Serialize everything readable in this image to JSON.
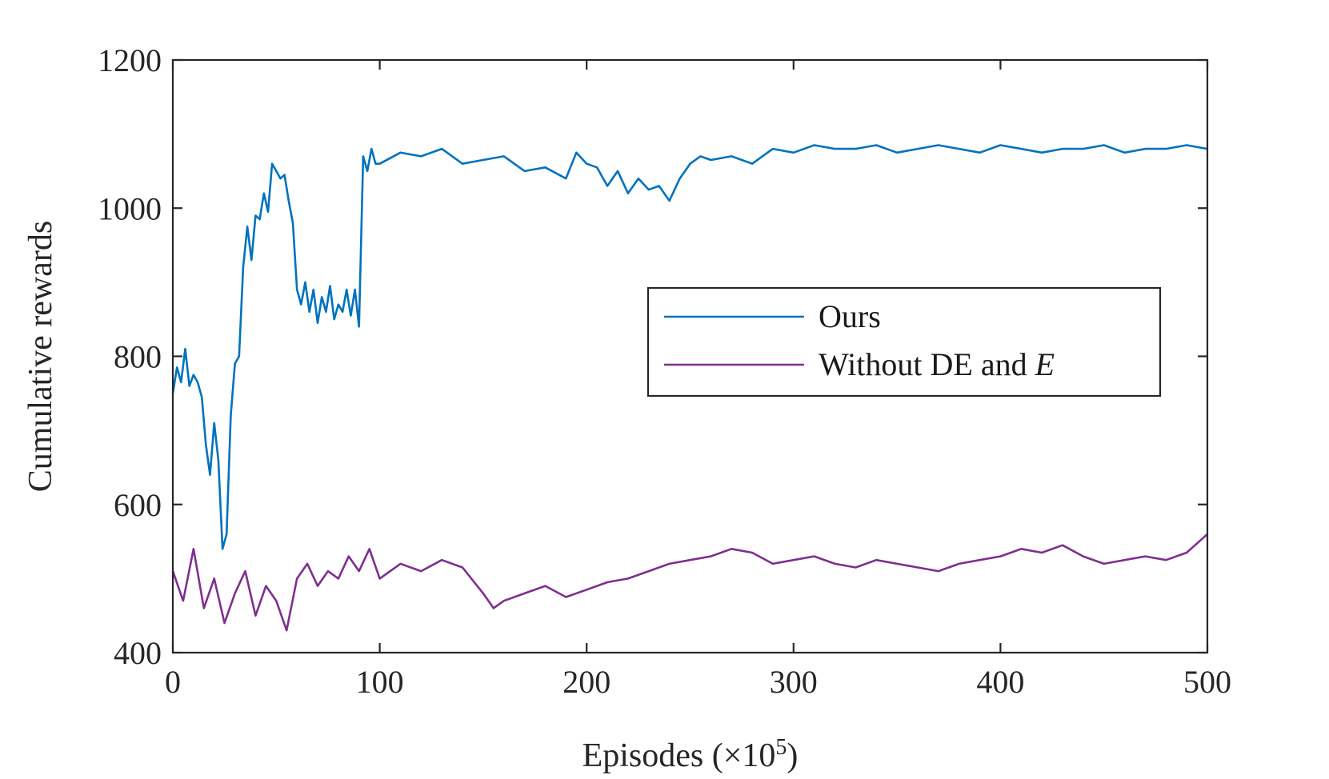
{
  "chart_data": {
    "type": "line",
    "title": "",
    "xlabel": "Episodes (×10",
    "xlabel_exponent": "5",
    "xlabel_close": ")",
    "ylabel": "Cumulative rewards",
    "xlim": [
      0,
      500
    ],
    "ylim": [
      400,
      1200
    ],
    "xticks": [
      0,
      100,
      200,
      300,
      400,
      500
    ],
    "yticks": [
      400,
      600,
      800,
      1000,
      1200
    ],
    "xtick_labels": [
      "0",
      "100",
      "200",
      "300",
      "400",
      "500"
    ],
    "ytick_labels": [
      "400",
      "600",
      "800",
      "1000",
      "1200"
    ],
    "grid": false,
    "legend_position": "center-right",
    "series": [
      {
        "name": "Ours",
        "color": "#0072BD",
        "x": [
          0,
          2,
          4,
          6,
          8,
          10,
          12,
          14,
          16,
          18,
          20,
          22,
          24,
          26,
          28,
          30,
          32,
          34,
          36,
          38,
          40,
          42,
          44,
          46,
          48,
          50,
          52,
          54,
          56,
          58,
          60,
          62,
          64,
          66,
          68,
          70,
          72,
          74,
          76,
          78,
          80,
          82,
          84,
          86,
          88,
          90,
          92,
          94,
          96,
          98,
          100,
          110,
          120,
          130,
          140,
          150,
          160,
          170,
          180,
          190,
          195,
          200,
          205,
          210,
          215,
          220,
          225,
          230,
          235,
          240,
          245,
          250,
          255,
          260,
          270,
          280,
          290,
          300,
          310,
          320,
          330,
          340,
          350,
          360,
          370,
          380,
          390,
          400,
          410,
          420,
          430,
          440,
          450,
          460,
          470,
          480,
          490,
          500
        ],
        "values": [
          750,
          785,
          765,
          810,
          760,
          775,
          765,
          745,
          680,
          640,
          710,
          660,
          540,
          560,
          720,
          790,
          800,
          920,
          975,
          930,
          990,
          985,
          1020,
          995,
          1060,
          1050,
          1040,
          1045,
          1010,
          980,
          890,
          870,
          900,
          860,
          890,
          845,
          880,
          860,
          895,
          850,
          870,
          860,
          890,
          855,
          890,
          840,
          1070,
          1050,
          1080,
          1060,
          1060,
          1075,
          1070,
          1080,
          1060,
          1065,
          1070,
          1050,
          1055,
          1040,
          1075,
          1060,
          1055,
          1030,
          1050,
          1020,
          1040,
          1025,
          1030,
          1010,
          1040,
          1060,
          1070,
          1065,
          1070,
          1060,
          1080,
          1075,
          1085,
          1080,
          1080,
          1085,
          1075,
          1080,
          1085,
          1080,
          1075,
          1085,
          1080,
          1075,
          1080,
          1080,
          1085,
          1075,
          1080,
          1080,
          1085,
          1080
        ]
      },
      {
        "name": "Without DE and E",
        "color": "#7E2F8E",
        "x": [
          0,
          5,
          10,
          15,
          20,
          25,
          30,
          35,
          40,
          45,
          50,
          55,
          60,
          65,
          70,
          75,
          80,
          85,
          90,
          95,
          100,
          110,
          120,
          130,
          140,
          150,
          155,
          160,
          170,
          180,
          190,
          200,
          210,
          220,
          230,
          240,
          250,
          260,
          270,
          280,
          290,
          300,
          310,
          320,
          330,
          340,
          350,
          360,
          370,
          380,
          390,
          400,
          410,
          420,
          430,
          440,
          450,
          460,
          470,
          480,
          490,
          500
        ],
        "values": [
          510,
          470,
          540,
          460,
          500,
          440,
          480,
          510,
          450,
          490,
          470,
          430,
          500,
          520,
          490,
          510,
          500,
          530,
          510,
          540,
          500,
          520,
          510,
          525,
          515,
          480,
          460,
          470,
          480,
          490,
          475,
          485,
          495,
          500,
          510,
          520,
          525,
          530,
          540,
          535,
          520,
          525,
          530,
          520,
          515,
          525,
          520,
          515,
          510,
          520,
          525,
          530,
          540,
          535,
          545,
          530,
          520,
          525,
          530,
          525,
          535,
          560
        ]
      }
    ]
  }
}
